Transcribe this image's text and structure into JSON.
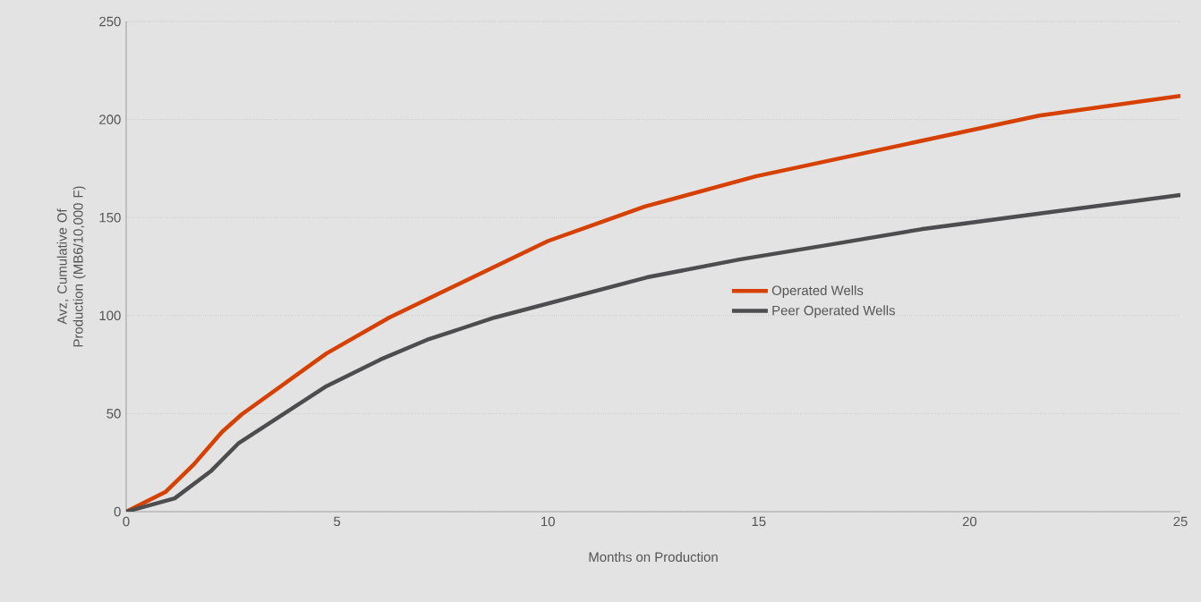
{
  "chart_data": {
    "type": "line",
    "xlabel": "Months on Production",
    "ylabel": "Avz, Cumulative Of Production (MB6/10,000 F)",
    "xlim": [
      0,
      25
    ],
    "ylim": [
      0,
      250
    ],
    "xticks": [
      0,
      5,
      10,
      15,
      20,
      25
    ],
    "yticks": [
      0,
      50,
      100,
      150,
      200,
      250
    ],
    "grid": "y",
    "legend": "right",
    "marker": "none",
    "line_style": "solid",
    "series": [
      {
        "name": "Operated Wells",
        "color": "#d64000",
        "x": [
          0,
          0.93,
          1.6,
          2.27,
          2.74,
          4.75,
          6.24,
          10.0,
          12.3,
          14.93,
          21.65,
          25
        ],
        "values": [
          0,
          10,
          24,
          40.6,
          49.6,
          80.7,
          99,
          138,
          155.6,
          171,
          202,
          212
        ]
      },
      {
        "name": "Peer Operated Wells",
        "color": "#4d4d4f",
        "x": [
          0,
          1.15,
          2.0,
          2.67,
          4.75,
          6.03,
          7.13,
          8.74,
          12.35,
          14.54,
          16.64,
          18.85,
          21.65,
          25
        ],
        "values": [
          0,
          6.8,
          20.5,
          35,
          64,
          77.6,
          87.6,
          99,
          119.5,
          128.6,
          136,
          144,
          152,
          161.5
        ]
      }
    ]
  }
}
